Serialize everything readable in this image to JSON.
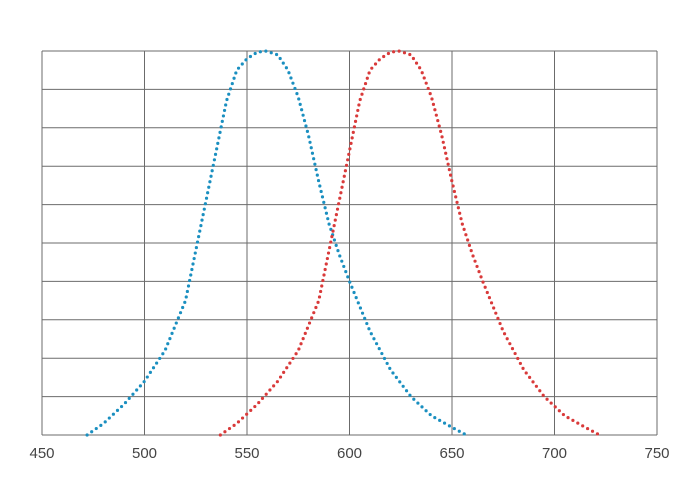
{
  "chart_data": {
    "type": "line",
    "xlim": [
      450,
      750
    ],
    "xticks": [
      450,
      500,
      550,
      600,
      650,
      700,
      750
    ],
    "ylim": [
      0,
      100
    ],
    "yticks": [
      0,
      10,
      20,
      30,
      40,
      50,
      60,
      70,
      80,
      90,
      100
    ],
    "grid": true,
    "series": [
      {
        "color": "#1a8fc0",
        "x": [
          472,
          480,
          490,
          500,
          510,
          520,
          530,
          535,
          540,
          545,
          550,
          555,
          559,
          565,
          570,
          575,
          580,
          585,
          590,
          595,
          600,
          610,
          620,
          630,
          640,
          650,
          657
        ],
        "values": [
          0,
          3,
          8,
          14,
          22,
          35,
          61,
          74,
          87,
          95,
          98,
          99.7,
          100,
          99,
          95,
          88,
          78,
          66,
          55,
          47,
          40,
          27,
          17,
          10,
          5,
          2,
          0
        ]
      },
      {
        "color": "#d93a3a",
        "x": [
          537,
          545,
          555,
          565,
          575,
          585,
          595,
          600,
          605,
          610,
          615,
          620,
          624,
          630,
          635,
          640,
          645,
          650,
          655,
          660,
          665,
          675,
          685,
          695,
          705,
          715,
          722
        ],
        "values": [
          0,
          3,
          8,
          14,
          22,
          35,
          61,
          74,
          87,
          95,
          98,
          99.7,
          100,
          99,
          95,
          88,
          78,
          66,
          55,
          47,
          40,
          27,
          17,
          10,
          5,
          2,
          0
        ]
      }
    ]
  }
}
